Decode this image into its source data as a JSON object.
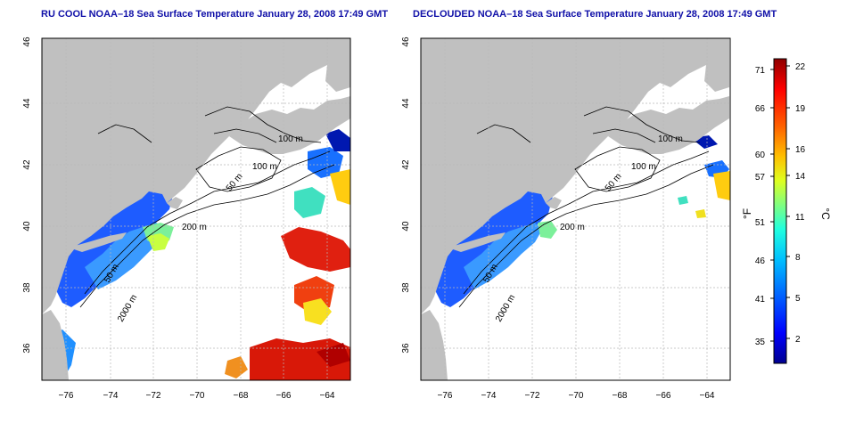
{
  "panels": [
    {
      "title": "RU COOL NOAA–18 Sea Surface Temperature January 28, 2008 17:49 GMT",
      "contour_labels": [
        "100 m",
        "100 m",
        "50 m",
        "200 m",
        "50 m",
        "2000 m"
      ]
    },
    {
      "title": "DECLOUDED NOAA–18 Sea Surface Temperature January 28, 2008 17:49 GMT",
      "contour_labels": [
        "100 m",
        "100 m",
        "50 m",
        "200 m",
        "50 m",
        "2000 m"
      ]
    }
  ],
  "axes": {
    "x_ticks": [
      "−76",
      "−74",
      "−72",
      "−70",
      "−68",
      "−66",
      "−64"
    ],
    "y_ticks": [
      "36",
      "38",
      "40",
      "42",
      "44",
      "46"
    ]
  },
  "colorbar": {
    "unit_f": "°F",
    "unit_c": "°C",
    "f_ticks": [
      "71",
      "66",
      "60",
      "57",
      "51",
      "46",
      "41",
      "35"
    ],
    "c_ticks": [
      "22",
      "19",
      "16",
      "14",
      "11",
      "8",
      "5",
      "2"
    ],
    "colors": [
      "#00008f",
      "#0000ff",
      "#0060ff",
      "#00bfff",
      "#20ffdf",
      "#80ff80",
      "#dfff20",
      "#ffbf00",
      "#ff6000",
      "#ff0000",
      "#8f0000"
    ]
  },
  "colors": {
    "land": "#c0c0c0",
    "ocean": "#ffffff",
    "grid": "#c8c8c8",
    "title": "#1010a8"
  }
}
